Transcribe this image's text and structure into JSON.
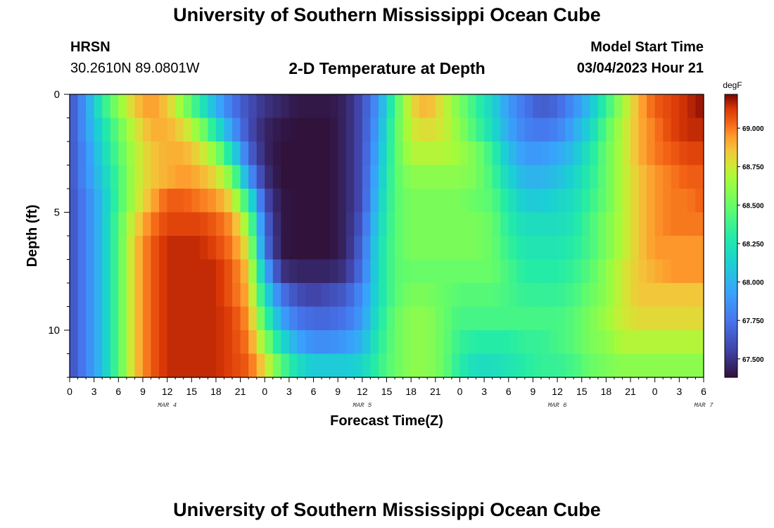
{
  "page": {
    "title_top": "University of Southern Mississippi Ocean Cube",
    "title_bottom": "University of Southern Mississippi Ocean Cube",
    "station": "HRSN",
    "coords": "30.2610N  89.0801W",
    "start_label": "Model Start Time",
    "start_value": "03/04/2023 Hour 21"
  },
  "chart_data": {
    "type": "heatmap",
    "title": "2-D Temperature at Depth",
    "xlabel": "Forecast Time(Z)",
    "ylabel": "Depth (ft)",
    "units": "degF",
    "y_range": [
      0,
      12
    ],
    "y_ticks": [
      "0",
      "5",
      "10"
    ],
    "x_tick_labels": [
      "0",
      "3",
      "6",
      "9",
      "12",
      "15",
      "18",
      "21",
      "0",
      "3",
      "6",
      "9",
      "12",
      "15",
      "18",
      "21",
      "0",
      "3",
      "6",
      "9",
      "12",
      "15",
      "18",
      "21",
      "0",
      "3",
      "6"
    ],
    "day_labels": [
      {
        "label": "MAR 4",
        "hour_index": 12
      },
      {
        "label": "MAR 5",
        "hour_index": 36
      },
      {
        "label": "MAR 6",
        "hour_index": 60
      },
      {
        "label": "MAR 7",
        "hour_index": 78
      }
    ],
    "colorbar": {
      "min": 67.38,
      "max": 69.22,
      "ticks": [
        "67.500",
        "67.750",
        "68.000",
        "68.250",
        "68.500",
        "68.750",
        "69.000"
      ]
    },
    "depth_levels_ft": [
      0.5,
      1.5,
      2.5,
      3.5,
      4.5,
      5.5,
      6.5,
      7.5,
      8.5,
      9.5,
      10.5,
      11.5
    ],
    "time_nodes_hours": [
      0,
      2,
      4,
      6,
      8,
      10,
      12,
      14,
      16,
      18,
      20,
      22,
      24,
      26,
      28,
      30,
      32,
      34,
      36,
      38,
      40,
      42,
      44,
      46,
      48,
      50,
      52,
      54,
      56,
      58,
      60,
      62,
      64,
      66,
      68,
      70,
      72,
      74,
      76,
      78
    ],
    "temperature_degF": [
      [
        67.6,
        67.9,
        68.3,
        68.6,
        68.85,
        68.95,
        68.85,
        68.6,
        68.3,
        68.0,
        67.75,
        67.6,
        67.5,
        67.45,
        67.4,
        67.4,
        67.4,
        67.45,
        67.6,
        67.9,
        68.4,
        68.8,
        68.9,
        68.75,
        68.55,
        68.35,
        68.15,
        67.9,
        67.75,
        67.65,
        67.7,
        67.85,
        68.05,
        68.35,
        68.65,
        68.9,
        69.05,
        69.1,
        69.15,
        69.2
      ],
      [
        67.6,
        67.9,
        68.2,
        68.5,
        68.75,
        68.9,
        68.9,
        68.8,
        68.6,
        68.25,
        67.9,
        67.6,
        67.45,
        67.4,
        67.38,
        67.38,
        67.38,
        67.45,
        67.6,
        67.95,
        68.45,
        68.75,
        68.8,
        68.75,
        68.6,
        68.4,
        68.2,
        67.95,
        67.8,
        67.75,
        67.8,
        67.95,
        68.15,
        68.45,
        68.7,
        68.9,
        69.0,
        69.1,
        69.15,
        69.15
      ],
      [
        67.6,
        67.85,
        68.15,
        68.45,
        68.7,
        68.85,
        68.9,
        68.9,
        68.8,
        68.6,
        68.2,
        67.7,
        67.45,
        67.38,
        67.38,
        67.38,
        67.38,
        67.45,
        67.6,
        68.0,
        68.45,
        68.7,
        68.7,
        68.7,
        68.65,
        68.55,
        68.35,
        68.05,
        67.9,
        67.9,
        67.95,
        68.05,
        68.25,
        68.5,
        68.7,
        68.9,
        69.0,
        69.05,
        69.1,
        69.1
      ],
      [
        67.6,
        67.85,
        68.1,
        68.4,
        68.7,
        68.85,
        68.9,
        68.95,
        68.9,
        68.8,
        68.55,
        67.9,
        67.5,
        67.38,
        67.38,
        67.38,
        67.38,
        67.45,
        67.6,
        68.05,
        68.45,
        68.6,
        68.6,
        68.6,
        68.6,
        68.55,
        68.4,
        68.15,
        68.0,
        68.0,
        68.05,
        68.15,
        68.3,
        68.5,
        68.7,
        68.85,
        68.95,
        69.0,
        69.05,
        69.05
      ],
      [
        67.6,
        67.8,
        68.05,
        68.4,
        68.7,
        68.9,
        69.05,
        69.05,
        69.0,
        68.95,
        68.8,
        68.3,
        67.6,
        67.4,
        67.38,
        67.38,
        67.38,
        67.45,
        67.6,
        68.1,
        68.45,
        68.55,
        68.55,
        68.55,
        68.55,
        68.5,
        68.45,
        68.25,
        68.1,
        68.1,
        68.15,
        68.2,
        68.35,
        68.5,
        68.7,
        68.85,
        68.95,
        69.0,
        69.0,
        69.05
      ],
      [
        67.6,
        67.8,
        68.05,
        68.45,
        68.8,
        69.0,
        69.1,
        69.1,
        69.1,
        69.05,
        68.95,
        68.6,
        67.7,
        67.4,
        67.38,
        67.38,
        67.38,
        67.45,
        67.65,
        68.15,
        68.45,
        68.55,
        68.55,
        68.55,
        68.55,
        68.55,
        68.5,
        68.3,
        68.2,
        68.2,
        68.2,
        68.25,
        68.4,
        68.55,
        68.7,
        68.85,
        68.95,
        69.0,
        69.0,
        69.0
      ],
      [
        67.6,
        67.8,
        68.05,
        68.45,
        68.85,
        69.05,
        69.15,
        69.15,
        69.15,
        69.1,
        69.0,
        68.75,
        67.75,
        67.4,
        67.38,
        67.38,
        67.38,
        67.45,
        67.7,
        68.2,
        68.45,
        68.55,
        68.55,
        68.55,
        68.55,
        68.55,
        68.5,
        68.35,
        68.25,
        68.25,
        68.25,
        68.3,
        68.4,
        68.55,
        68.7,
        68.85,
        68.95,
        68.95,
        68.95,
        68.95
      ],
      [
        67.6,
        67.8,
        68.05,
        68.45,
        68.85,
        69.05,
        69.15,
        69.15,
        69.15,
        69.15,
        69.05,
        68.85,
        68.0,
        67.5,
        67.45,
        67.45,
        67.45,
        67.5,
        67.75,
        68.2,
        68.45,
        68.5,
        68.5,
        68.5,
        68.5,
        68.5,
        68.5,
        68.4,
        68.3,
        68.3,
        68.3,
        68.35,
        68.45,
        68.6,
        68.75,
        68.85,
        68.9,
        68.95,
        68.95,
        68.95
      ],
      [
        67.6,
        67.8,
        68.05,
        68.45,
        68.85,
        69.05,
        69.15,
        69.15,
        69.15,
        69.15,
        69.05,
        68.9,
        68.2,
        67.75,
        67.6,
        67.55,
        67.6,
        67.65,
        67.85,
        68.2,
        68.45,
        68.55,
        68.55,
        68.5,
        68.45,
        68.45,
        68.45,
        68.4,
        68.35,
        68.35,
        68.35,
        68.4,
        68.5,
        68.6,
        68.75,
        68.85,
        68.85,
        68.85,
        68.85,
        68.85
      ],
      [
        67.6,
        67.8,
        68.05,
        68.45,
        68.85,
        69.05,
        69.15,
        69.15,
        69.15,
        69.15,
        69.1,
        68.95,
        68.4,
        67.95,
        67.75,
        67.7,
        67.7,
        67.75,
        67.9,
        68.25,
        68.5,
        68.6,
        68.6,
        68.5,
        68.4,
        68.4,
        68.4,
        68.4,
        68.4,
        68.4,
        68.4,
        68.45,
        68.55,
        68.65,
        68.75,
        68.8,
        68.8,
        68.8,
        68.8,
        68.8
      ],
      [
        67.6,
        67.8,
        68.05,
        68.45,
        68.85,
        69.05,
        69.15,
        69.15,
        69.15,
        69.15,
        69.1,
        69.0,
        68.6,
        68.2,
        67.95,
        67.85,
        67.85,
        67.9,
        68.0,
        68.3,
        68.5,
        68.6,
        68.6,
        68.5,
        68.35,
        68.3,
        68.3,
        68.3,
        68.35,
        68.35,
        68.4,
        68.45,
        68.55,
        68.6,
        68.7,
        68.7,
        68.7,
        68.7,
        68.7,
        68.7
      ],
      [
        67.6,
        67.8,
        68.05,
        68.45,
        68.85,
        69.05,
        69.15,
        69.15,
        69.15,
        69.15,
        69.1,
        69.05,
        68.8,
        68.45,
        68.2,
        68.1,
        68.1,
        68.1,
        68.15,
        68.35,
        68.5,
        68.6,
        68.6,
        68.5,
        68.3,
        68.2,
        68.2,
        68.25,
        68.3,
        68.35,
        68.35,
        68.4,
        68.5,
        68.55,
        68.6,
        68.6,
        68.6,
        68.6,
        68.6,
        68.6
      ]
    ]
  }
}
